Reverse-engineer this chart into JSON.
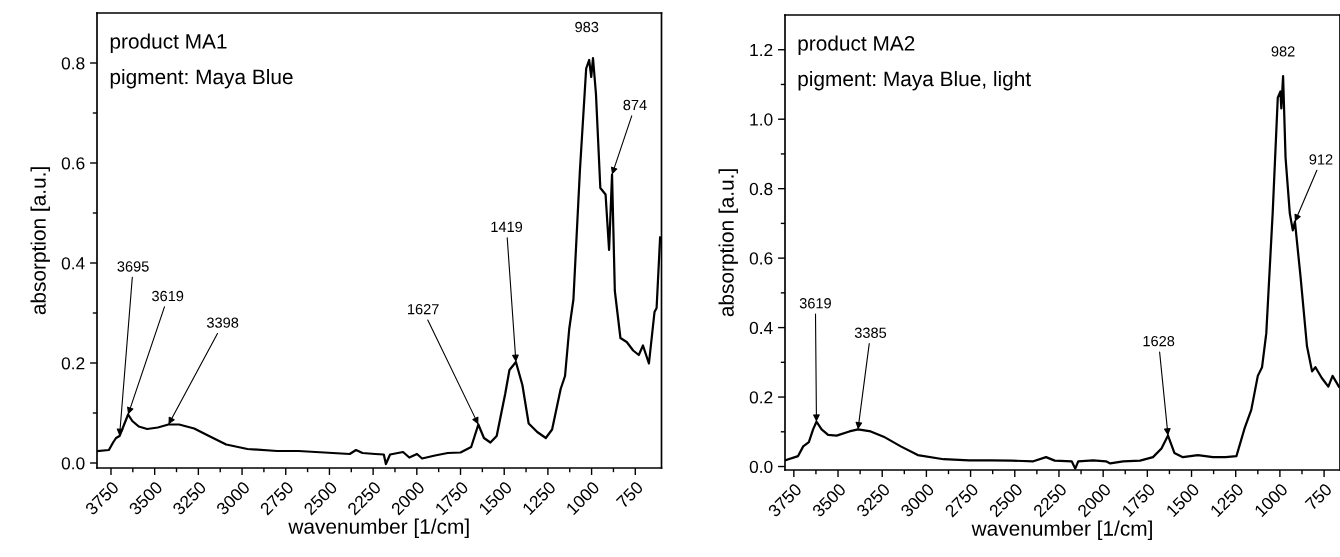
{
  "chart_data": [
    {
      "type": "line",
      "xlabel": "wavenumber [1/cm]",
      "ylabel": "absorption [a.u.]",
      "xlim": [
        3830,
        600
      ],
      "ylim": [
        -0.01,
        0.9
      ],
      "marker": "none",
      "line_style": "solid",
      "xticks": [
        3750,
        {
          "value": 3625,
          "label": null
        },
        3500,
        {
          "value": 3375,
          "label": null
        },
        3250,
        {
          "value": 3125,
          "label": null
        },
        3000,
        {
          "value": 2875,
          "label": null
        },
        2750,
        {
          "value": 2625,
          "label": null
        },
        2500,
        {
          "value": 2375,
          "label": null
        },
        2250,
        {
          "value": 2125,
          "label": null
        },
        2000,
        {
          "value": 1875,
          "label": null
        },
        1750,
        {
          "value": 1625,
          "label": null
        },
        1500,
        {
          "value": 1375,
          "label": null
        },
        1250,
        {
          "value": 1125,
          "label": null
        },
        1000,
        {
          "value": 875,
          "label": null
        },
        750
      ],
      "yticks": [
        {
          "value": 0,
          "label": "0.0"
        },
        {
          "value": 0.1,
          "label": null
        },
        0.2,
        {
          "value": 0.3,
          "label": null
        },
        0.4,
        {
          "value": 0.5,
          "label": null
        },
        0.6,
        {
          "value": 0.7,
          "label": null
        },
        0.8
      ],
      "series": [
        {
          "color": "#000000",
          "x": [
            3828,
            3762,
            3738,
            3721,
            3701,
            3677,
            3652,
            3628,
            3591,
            3543,
            3482,
            3421,
            3360,
            3274,
            3189,
            3091,
            2969,
            2799,
            2677,
            2530,
            2384,
            2348,
            2311,
            2238,
            2189,
            2177,
            2153,
            2079,
            2043,
            1999,
            1970,
            1896,
            1823,
            1750,
            1689,
            1648,
            1616,
            1579,
            1543,
            1494,
            1470,
            1433,
            1396,
            1360,
            1311,
            1262,
            1226,
            1177,
            1152,
            1128,
            1104,
            1067,
            1031,
            1014,
            1002,
            992,
            975,
            950,
            920,
            900,
            883,
            867,
            835,
            799,
            762,
            730,
            706,
            672,
            640,
            628,
            608
          ],
          "values": [
            0.024,
            0.026,
            0.041,
            0.05,
            0.054,
            0.075,
            0.097,
            0.084,
            0.073,
            0.068,
            0.071,
            0.077,
            0.077,
            0.069,
            0.054,
            0.037,
            0.028,
            0.024,
            0.024,
            0.021,
            0.018,
            0.026,
            0.02,
            0.018,
            0.017,
            -0.002,
            0.017,
            0.022,
            0.011,
            0.018,
            0.009,
            0.015,
            0.02,
            0.021,
            0.032,
            0.077,
            0.05,
            0.041,
            0.054,
            0.139,
            0.186,
            0.202,
            0.156,
            0.079,
            0.062,
            0.05,
            0.067,
            0.148,
            0.174,
            0.268,
            0.327,
            0.584,
            0.789,
            0.806,
            0.772,
            0.81,
            0.738,
            0.55,
            0.537,
            0.426,
            0.577,
            0.344,
            0.25,
            0.242,
            0.225,
            0.216,
            0.235,
            0.199,
            0.302,
            0.31,
            0.451
          ]
        }
      ],
      "annotations": [
        "product MA1",
        "pigment: Maya Blue",
        {
          "text": "3695",
          "x": 3701,
          "y": 0.054
        },
        {
          "text": "3619",
          "x": 3652,
          "y": 0.097
        },
        {
          "text": "3398",
          "x": 3421,
          "y": 0.077
        },
        {
          "text": "1627",
          "x": 1648,
          "y": 0.077
        },
        {
          "text": "1419",
          "x": 1433,
          "y": 0.202
        },
        {
          "text": "983",
          "x": 992,
          "y": 0.81
        },
        {
          "text": "874",
          "x": 883,
          "y": 0.577
        }
      ]
    },
    {
      "type": "line",
      "xlabel": "wavenumber [1/cm]",
      "ylabel": "absorption [a.u.]",
      "xlim": [
        3800,
        660
      ],
      "ylim": [
        -0.01,
        1.3
      ],
      "marker": "none",
      "line_style": "solid",
      "xticks": [
        3750,
        {
          "value": 3625,
          "label": null
        },
        3500,
        {
          "value": 3375,
          "label": null
        },
        3250,
        {
          "value": 3125,
          "label": null
        },
        3000,
        {
          "value": 2875,
          "label": null
        },
        2750,
        {
          "value": 2625,
          "label": null
        },
        2500,
        {
          "value": 2375,
          "label": null
        },
        2250,
        {
          "value": 2125,
          "label": null
        },
        2000,
        {
          "value": 1875,
          "label": null
        },
        1750,
        {
          "value": 1625,
          "label": null
        },
        1500,
        {
          "value": 1375,
          "label": null
        },
        1250,
        {
          "value": 1125,
          "label": null
        },
        1000,
        {
          "value": 875,
          "label": null
        },
        750
      ],
      "yticks": [
        {
          "value": 0,
          "label": "0.0"
        },
        {
          "value": 0.1,
          "label": null
        },
        0.2,
        {
          "value": 0.3,
          "label": null
        },
        0.4,
        {
          "value": 0.5,
          "label": null
        },
        0.6,
        {
          "value": 0.7,
          "label": null
        },
        0.8,
        {
          "value": 0.9,
          "label": null
        },
        {
          "value": 1.0,
          "label": "1.0"
        },
        {
          "value": 1.1,
          "label": null
        },
        1.2
      ],
      "series": [
        {
          "color": "#000000",
          "x": [
            3798,
            3726,
            3697,
            3665,
            3641,
            3622,
            3593,
            3556,
            3508,
            3436,
            3387,
            3315,
            3242,
            3145,
            3049,
            2903,
            2758,
            2637,
            2516,
            2395,
            2323,
            2274,
            2178,
            2158,
            2141,
            2057,
            1984,
            1960,
            1887,
            1791,
            1718,
            1670,
            1633,
            1597,
            1549,
            1464,
            1379,
            1307,
            1246,
            1198,
            1162,
            1125,
            1101,
            1077,
            1041,
            1012,
            997,
            992,
            982,
            968,
            944,
            927,
            915,
            883,
            847,
            818,
            799,
            763,
            726,
            702,
            666
          ],
          "values": [
            0.018,
            0.03,
            0.058,
            0.07,
            0.107,
            0.129,
            0.107,
            0.091,
            0.089,
            0.101,
            0.107,
            0.101,
            0.086,
            0.058,
            0.033,
            0.021,
            0.018,
            0.018,
            0.017,
            0.015,
            0.027,
            0.017,
            0.015,
            -0.006,
            0.015,
            0.018,
            0.015,
            0.009,
            0.015,
            0.017,
            0.027,
            0.052,
            0.089,
            0.039,
            0.027,
            0.033,
            0.027,
            0.027,
            0.03,
            0.113,
            0.163,
            0.261,
            0.286,
            0.384,
            0.729,
            1.062,
            1.08,
            1.031,
            1.124,
            0.889,
            0.729,
            0.68,
            0.705,
            0.545,
            0.347,
            0.274,
            0.286,
            0.255,
            0.23,
            0.261,
            0.23
          ]
        }
      ],
      "annotations": [
        "product MA2",
        "pigment: Maya Blue, light",
        {
          "text": "3619",
          "x": 3622,
          "y": 0.129
        },
        {
          "text": "3385",
          "x": 3387,
          "y": 0.107
        },
        {
          "text": "1628",
          "x": 1633,
          "y": 0.089
        },
        {
          "text": "982",
          "x": 982,
          "y": 1.124
        },
        {
          "text": "912",
          "x": 915,
          "y": 0.705
        }
      ]
    }
  ]
}
